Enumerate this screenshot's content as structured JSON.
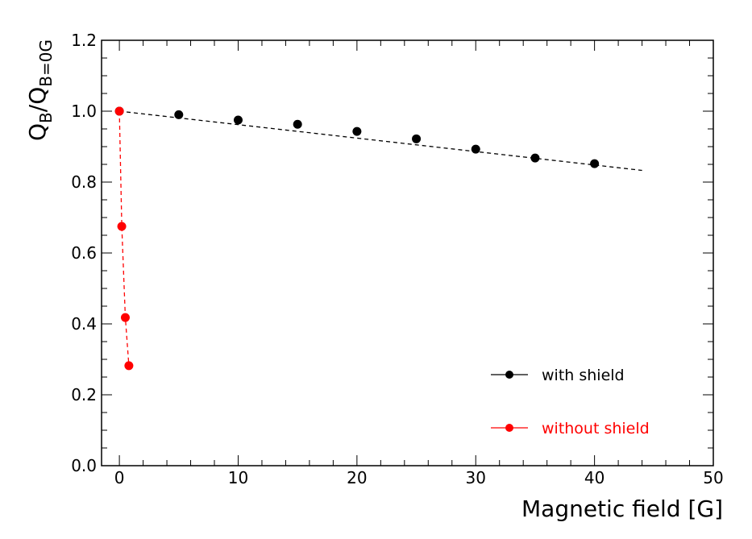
{
  "chart_data": {
    "type": "scatter",
    "title": "",
    "xlabel": "Magnetic field [G]",
    "ylabel": {
      "main": "Q",
      "sub1": "B",
      "sep": "/Q",
      "sub2": "B=0G"
    },
    "xlim": [
      -1.5,
      50
    ],
    "ylim": [
      0,
      1.2
    ],
    "x_ticks": [
      0,
      10,
      20,
      30,
      40,
      50
    ],
    "y_ticks": [
      "0.0",
      "0.2",
      "0.4",
      "0.6",
      "0.8",
      "1.0",
      "1.2"
    ],
    "grid": false,
    "legend_position": "bottom-right",
    "series": [
      {
        "name": "with shield",
        "color": "#000000",
        "x": [
          0,
          5,
          10,
          15,
          20,
          25,
          30,
          35,
          40
        ],
        "y": [
          1.0,
          0.99,
          0.975,
          0.963,
          0.943,
          0.922,
          0.893,
          0.868,
          0.852
        ],
        "fit_line": {
          "x": [
            0,
            44
          ],
          "y": [
            1.0,
            0.833
          ],
          "style": "dashed"
        }
      },
      {
        "name": "without shield",
        "color": "#ff0000",
        "x": [
          0,
          0.2,
          0.5,
          0.8
        ],
        "y": [
          1.0,
          0.675,
          0.418,
          0.282
        ],
        "fit_line": {
          "x": [
            0,
            0.2,
            0.5,
            0.8
          ],
          "y": [
            1.0,
            0.675,
            0.418,
            0.282
          ],
          "style": "dashed"
        }
      }
    ]
  }
}
